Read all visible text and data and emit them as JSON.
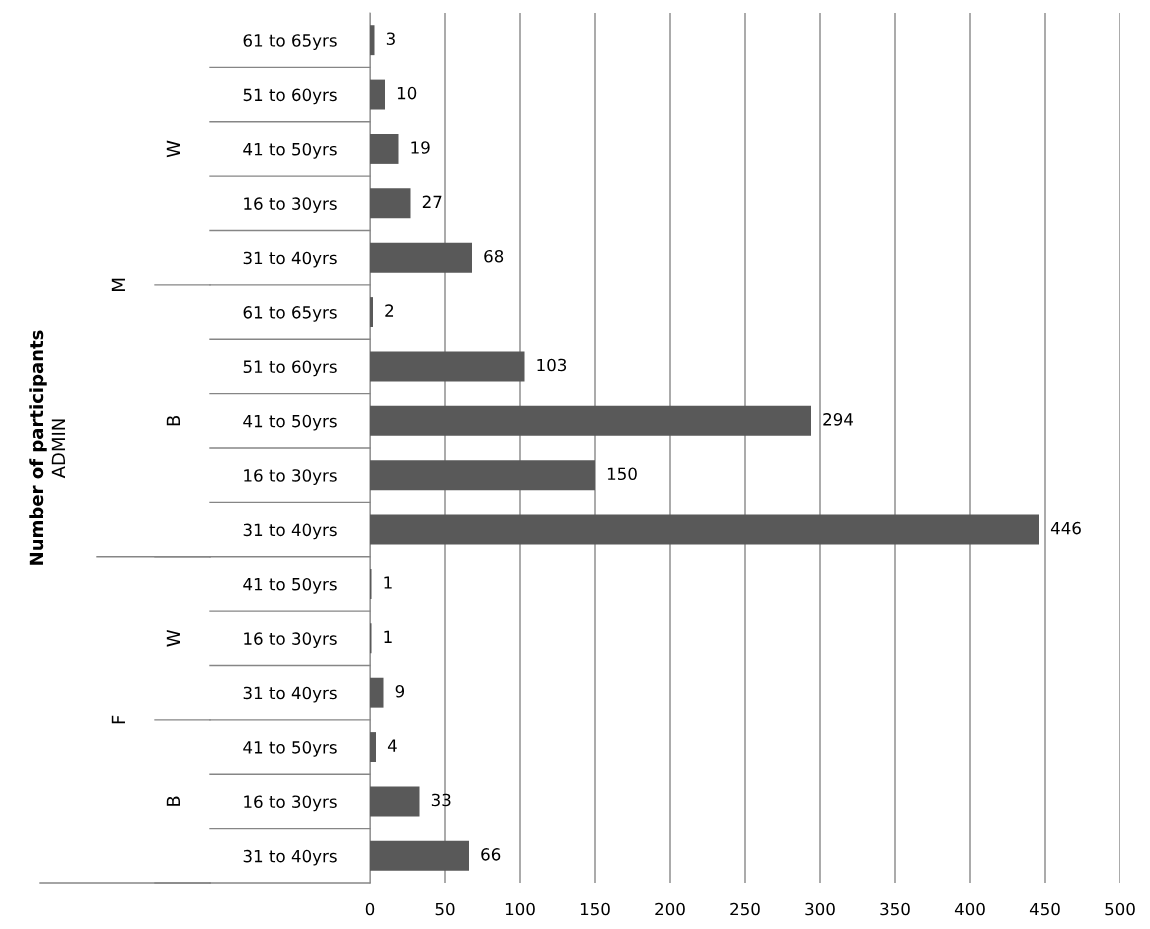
{
  "chart_data": {
    "type": "bar",
    "orientation": "horizontal",
    "categories": [
      "61 to 65yrs",
      "51 to 60yrs",
      "41 to 50yrs",
      "16 to 30yrs",
      "31 to 40yrs",
      "61 to 65yrs",
      "51 to 60yrs",
      "41 to 50yrs",
      "16 to 30yrs",
      "31 to 40yrs",
      "41 to 50yrs",
      "16 to 30yrs",
      "31 to 40yrs",
      "41 to 50yrs",
      "16 to 30yrs",
      "31 to 40yrs"
    ],
    "values": [
      3,
      10,
      19,
      27,
      68,
      2,
      103,
      294,
      150,
      446,
      1,
      1,
      9,
      4,
      33,
      66
    ],
    "color": "#595959",
    "xlim": [
      0,
      500
    ],
    "xticks": [
      0,
      50,
      100,
      150,
      200,
      250,
      300,
      350,
      400,
      450,
      500
    ],
    "grid": "x",
    "data_labels": true,
    "legend": false,
    "annotations": [
      "ADMIN",
      "M",
      "W",
      "B",
      "F",
      "W",
      "B",
      "Number of participants"
    ]
  }
}
